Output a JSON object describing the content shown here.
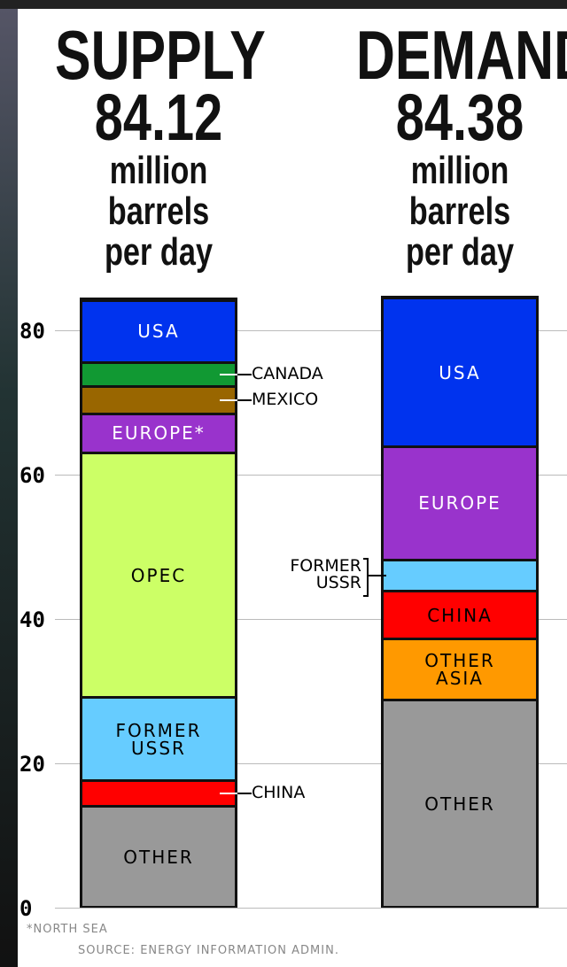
{
  "chart_data": {
    "type": "stacked-bar",
    "ylim": [
      0,
      85
    ],
    "yticks": [
      0,
      20,
      40,
      60,
      80
    ],
    "grid": true,
    "unit": "million\nbarrels\nper day",
    "series": [
      {
        "name": "SUPPLY",
        "total": 84.12,
        "categories": [
          "OTHER",
          "CHINA",
          "FORMER\nUSSR",
          "OPEC",
          "EUROPE*",
          "MEXICO",
          "CANADA",
          "USA"
        ],
        "values": [
          14,
          3.6,
          11.5,
          33.9,
          5.4,
          3.8,
          3.3,
          8.6
        ],
        "colors": [
          "#999999",
          "#ff0000",
          "#66ccff",
          "#ccff66",
          "#9933cc",
          "#996600",
          "#119933",
          "#0033ee"
        ],
        "text_colors": [
          "#000000",
          "#000000",
          "#000000",
          "#000000",
          "#ffffff",
          "#000000",
          "#000000",
          "#ffffff"
        ]
      },
      {
        "name": "DEMAND",
        "total": 84.38,
        "categories": [
          "OTHER",
          "OTHER\nASIA",
          "CHINA",
          "FORMER\nUSSR",
          "EUROPE",
          "USA"
        ],
        "values": [
          28.8,
          8.4,
          6.6,
          4.4,
          15.6,
          20.6
        ],
        "colors": [
          "#999999",
          "#ff9900",
          "#ff0000",
          "#66ccff",
          "#9933cc",
          "#0033ee"
        ],
        "text_colors": [
          "#000000",
          "#000000",
          "#000000",
          "#000000",
          "#ffffff",
          "#ffffff"
        ]
      }
    ],
    "footnote": "*NORTH SEA",
    "source": "SOURCE: ENERGY INFORMATION ADMIN."
  }
}
